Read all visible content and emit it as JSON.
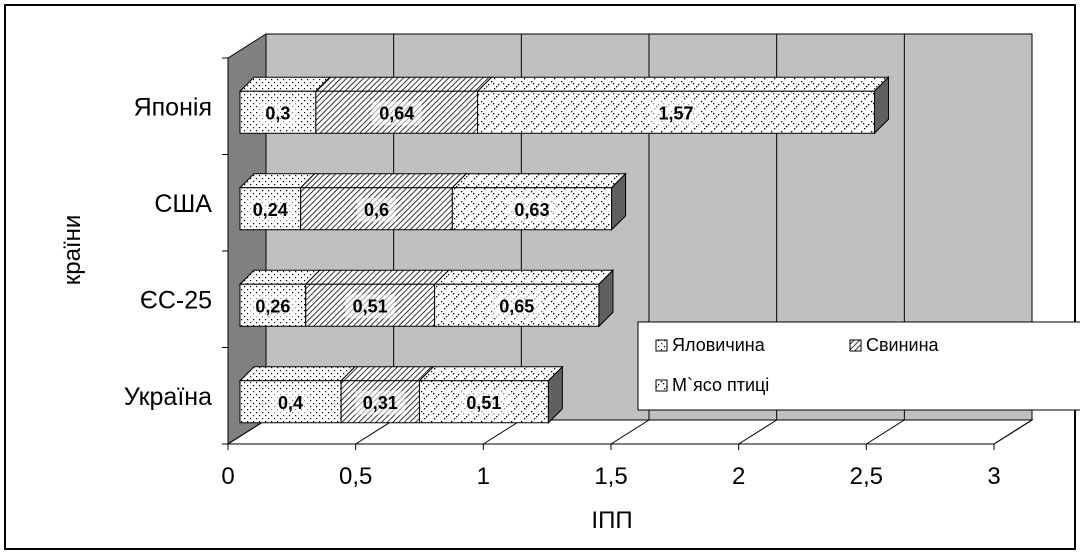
{
  "chart_data": {
    "type": "bar",
    "orientation": "horizontal",
    "stacked": true,
    "three_d": true,
    "categories": [
      "Японія",
      "США",
      "ЄС-25",
      "Україна"
    ],
    "series": [
      {
        "name": "Яловичина",
        "values": [
          0.3,
          0.24,
          0.26,
          0.4
        ],
        "labels": [
          "0,3",
          "0,24",
          "0,26",
          "0,4"
        ],
        "fill": "dots-fine"
      },
      {
        "name": "Свинина",
        "values": [
          0.64,
          0.6,
          0.51,
          0.31
        ],
        "labels": [
          "0,64",
          "0,6",
          "0,51",
          "0,31"
        ],
        "fill": "diagonal-hatch"
      },
      {
        "name": "М`ясо птиці",
        "values": [
          1.57,
          0.63,
          0.65,
          0.51
        ],
        "labels": [
          "1,57",
          "0,63",
          "0,65",
          "0,51"
        ],
        "fill": "dots-cross"
      }
    ],
    "xlabel": "ІПП",
    "ylabel": "країни",
    "xlim": [
      0,
      3
    ],
    "xticks": [
      "0",
      "0,5",
      "1",
      "1,5",
      "2",
      "2,5",
      "3"
    ],
    "grid": true,
    "wall_color": "#c0c0c0",
    "legend": "bottom-right"
  }
}
